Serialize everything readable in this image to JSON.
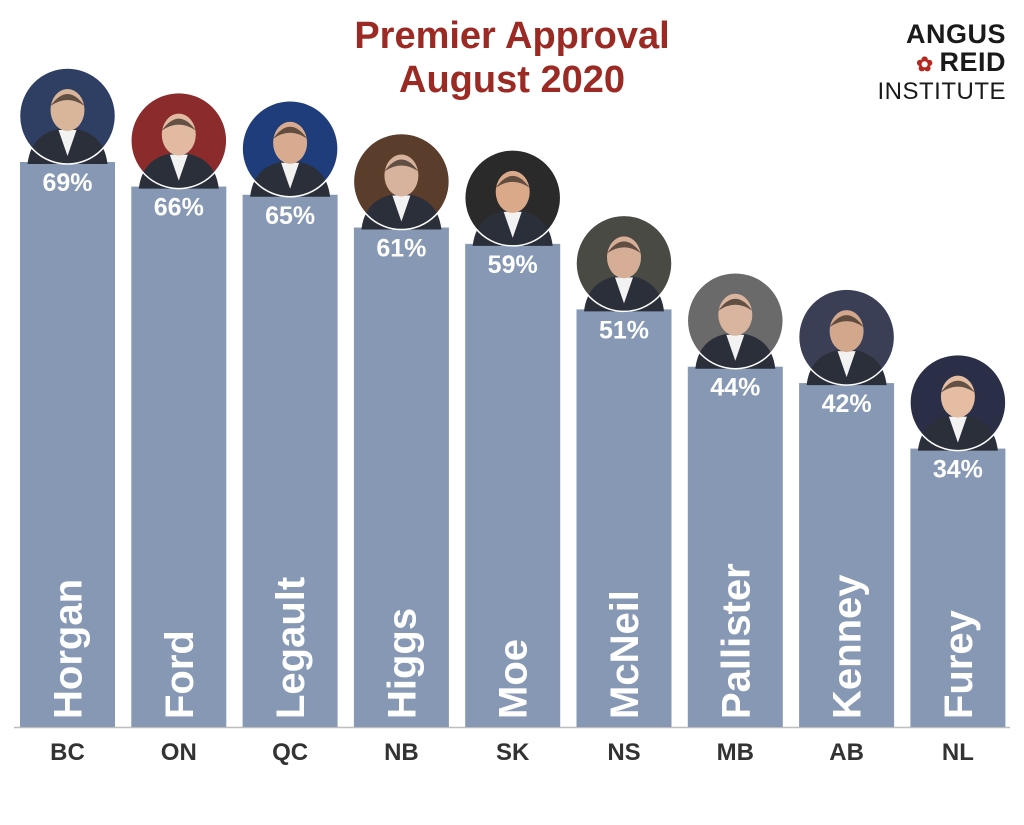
{
  "title_line1": "Premier Approval",
  "title_line2": "August 2020",
  "logo": {
    "line1": "ANGUS",
    "line2": "REID",
    "line3": "INSTITUTE"
  },
  "colors": {
    "bar": "#8698b3",
    "title": "#9b2a24",
    "baseline": "#bdbdbd",
    "leaf": "#b5281f"
  },
  "chart_data": {
    "type": "bar",
    "title": "Premier Approval August 2020",
    "categories": [
      "BC",
      "ON",
      "QC",
      "NB",
      "SK",
      "NS",
      "MB",
      "AB",
      "NL"
    ],
    "premiers": [
      "Horgan",
      "Ford",
      "Legault",
      "Higgs",
      "Moe",
      "McNeil",
      "Pallister",
      "Kenney",
      "Furey"
    ],
    "values": [
      69,
      66,
      65,
      61,
      59,
      51,
      44,
      42,
      34
    ],
    "value_labels": [
      "69%",
      "66%",
      "65%",
      "61%",
      "59%",
      "51%",
      "44%",
      "42%",
      "34%"
    ],
    "ylim": [
      0,
      100
    ],
    "grid": false,
    "legend": "none"
  }
}
